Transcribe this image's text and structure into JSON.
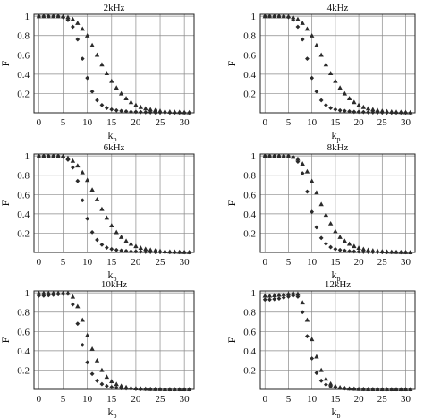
{
  "colors": {
    "diamond": "#2b2b2b",
    "triangle": "#2b2b2b",
    "grid": "#8a8a8a",
    "frame": "#222222"
  },
  "chart_data": [
    {
      "type": "scatter",
      "title": "2kHz",
      "xlabel": "k",
      "xlabel_sub": "p",
      "ylabel": "F",
      "xlim": [
        -1,
        32
      ],
      "ylim": [
        0,
        1.02
      ],
      "xticks": [
        0,
        5,
        10,
        15,
        20,
        25,
        30
      ],
      "yticks": [
        {
          "v": 0.2,
          "t": "0.2"
        },
        {
          "v": 0.4,
          "t": "0.4"
        },
        {
          "v": 0.6,
          "t": "0.6"
        },
        {
          "v": 0.8,
          "t": "0.8"
        },
        {
          "v": 1,
          "t": "1"
        }
      ],
      "grid": true,
      "series": [
        {
          "marker": "diamond",
          "x": [
            0,
            1,
            2,
            3,
            4,
            5,
            6,
            7,
            8,
            9,
            10,
            11,
            12,
            13,
            14,
            15,
            16,
            17,
            18,
            19,
            20,
            21,
            22,
            23,
            24,
            25,
            26,
            27,
            28,
            29,
            30,
            31
          ],
          "y": [
            1,
            1,
            1,
            1,
            1,
            0.99,
            0.96,
            0.89,
            0.76,
            0.56,
            0.36,
            0.22,
            0.13,
            0.08,
            0.05,
            0.035,
            0.025,
            0.02,
            0.015,
            0.01,
            0.01,
            0.008,
            0.006,
            0.005,
            0.004,
            0.003,
            0.003,
            0.002,
            0.002,
            0.002,
            0.001,
            0.001
          ]
        },
        {
          "marker": "triangle",
          "x": [
            0,
            1,
            2,
            3,
            4,
            5,
            6,
            7,
            8,
            9,
            10,
            11,
            12,
            13,
            14,
            15,
            16,
            17,
            18,
            19,
            20,
            21,
            22,
            23,
            24,
            25,
            26,
            27,
            28,
            29,
            30,
            31
          ],
          "y": [
            1,
            1,
            1,
            1,
            1,
            1,
            0.99,
            0.97,
            0.93,
            0.87,
            0.8,
            0.7,
            0.6,
            0.5,
            0.41,
            0.33,
            0.26,
            0.2,
            0.15,
            0.11,
            0.08,
            0.06,
            0.045,
            0.035,
            0.027,
            0.02,
            0.015,
            0.012,
            0.01,
            0.008,
            0.006,
            0.005
          ]
        }
      ]
    },
    {
      "type": "scatter",
      "title": "4kHz",
      "xlabel": "k",
      "xlabel_sub": "p",
      "ylabel": "F",
      "xlim": [
        -1,
        32
      ],
      "ylim": [
        0,
        1.02
      ],
      "xticks": [
        0,
        5,
        10,
        15,
        20,
        25,
        30
      ],
      "yticks": [
        {
          "v": 0.2,
          "t": "0.2"
        },
        {
          "v": 0.4,
          "t": "0.4"
        },
        {
          "v": 0.6,
          "t": "0.6"
        },
        {
          "v": 0.8,
          "t": "0.8"
        },
        {
          "v": 1,
          "t": "1"
        }
      ],
      "grid": true,
      "series": [
        {
          "marker": "diamond",
          "x": [
            0,
            1,
            2,
            3,
            4,
            5,
            6,
            7,
            8,
            9,
            10,
            11,
            12,
            13,
            14,
            15,
            16,
            17,
            18,
            19,
            20,
            21,
            22,
            23,
            24,
            25,
            26,
            27,
            28,
            29,
            30,
            31
          ],
          "y": [
            1,
            1,
            1,
            1,
            1,
            0.99,
            0.96,
            0.89,
            0.76,
            0.56,
            0.36,
            0.22,
            0.13,
            0.08,
            0.05,
            0.035,
            0.025,
            0.02,
            0.015,
            0.01,
            0.01,
            0.008,
            0.006,
            0.005,
            0.004,
            0.003,
            0.003,
            0.002,
            0.002,
            0.002,
            0.001,
            0.001
          ]
        },
        {
          "marker": "triangle",
          "x": [
            0,
            1,
            2,
            3,
            4,
            5,
            6,
            7,
            8,
            9,
            10,
            11,
            12,
            13,
            14,
            15,
            16,
            17,
            18,
            19,
            20,
            21,
            22,
            23,
            24,
            25,
            26,
            27,
            28,
            29,
            30,
            31
          ],
          "y": [
            1,
            1,
            1,
            1,
            1,
            1,
            0.99,
            0.97,
            0.93,
            0.87,
            0.8,
            0.7,
            0.6,
            0.5,
            0.41,
            0.33,
            0.26,
            0.2,
            0.15,
            0.11,
            0.08,
            0.06,
            0.045,
            0.035,
            0.027,
            0.02,
            0.015,
            0.012,
            0.01,
            0.008,
            0.006,
            0.005
          ]
        }
      ]
    },
    {
      "type": "scatter",
      "title": "6kHz",
      "xlabel": "k",
      "xlabel_sub": "p",
      "ylabel": "F",
      "xlim": [
        -1,
        32
      ],
      "ylim": [
        0,
        1.02
      ],
      "xticks": [
        0,
        5,
        10,
        15,
        20,
        25,
        30
      ],
      "yticks": [
        {
          "v": 0.2,
          "t": "0.2"
        },
        {
          "v": 0.4,
          "t": "0.4"
        },
        {
          "v": 0.6,
          "t": "0.6"
        },
        {
          "v": 0.8,
          "t": "0.8"
        },
        {
          "v": 1,
          "t": "1"
        }
      ],
      "grid": true,
      "series": [
        {
          "marker": "diamond",
          "x": [
            0,
            1,
            2,
            3,
            4,
            5,
            6,
            7,
            8,
            9,
            10,
            11,
            12,
            13,
            14,
            15,
            16,
            17,
            18,
            19,
            20,
            21,
            22,
            23,
            24,
            25,
            26,
            27,
            28,
            29,
            30,
            31
          ],
          "y": [
            1,
            1,
            1,
            1,
            1,
            0.99,
            0.96,
            0.88,
            0.74,
            0.54,
            0.35,
            0.21,
            0.13,
            0.08,
            0.05,
            0.035,
            0.025,
            0.02,
            0.015,
            0.01,
            0.01,
            0.008,
            0.006,
            0.005,
            0.004,
            0.003,
            0.003,
            0.002,
            0.002,
            0.002,
            0.001,
            0.001
          ]
        },
        {
          "marker": "triangle",
          "x": [
            0,
            1,
            2,
            3,
            4,
            5,
            6,
            7,
            8,
            9,
            10,
            11,
            12,
            13,
            14,
            15,
            16,
            17,
            18,
            19,
            20,
            21,
            22,
            23,
            24,
            25,
            26,
            27,
            28,
            29,
            30,
            31
          ],
          "y": [
            1,
            1,
            1,
            1,
            1,
            1,
            0.98,
            0.95,
            0.9,
            0.83,
            0.75,
            0.65,
            0.55,
            0.45,
            0.36,
            0.28,
            0.21,
            0.16,
            0.12,
            0.09,
            0.065,
            0.048,
            0.036,
            0.027,
            0.02,
            0.015,
            0.011,
            0.009,
            0.007,
            0.005,
            0.004,
            0.003
          ]
        }
      ]
    },
    {
      "type": "scatter",
      "title": "8kHz",
      "xlabel": "k",
      "xlabel_sub": "p",
      "ylabel": "F",
      "xlim": [
        -1,
        32
      ],
      "ylim": [
        0,
        1.02
      ],
      "xticks": [
        0,
        5,
        10,
        15,
        20,
        25,
        30
      ],
      "yticks": [
        {
          "v": 0.2,
          "t": "0.2"
        },
        {
          "v": 0.4,
          "t": "0.4"
        },
        {
          "v": 0.6,
          "t": "0.6"
        },
        {
          "v": 0.8,
          "t": "0.8"
        },
        {
          "v": 1,
          "t": "1"
        }
      ],
      "grid": true,
      "series": [
        {
          "marker": "diamond",
          "x": [
            0,
            1,
            2,
            3,
            4,
            5,
            6,
            7,
            8,
            9,
            10,
            11,
            12,
            13,
            14,
            15,
            16,
            17,
            18,
            19,
            20,
            21,
            22,
            23,
            24,
            25,
            26,
            27,
            28,
            29,
            30,
            31
          ],
          "y": [
            1,
            1,
            1,
            1,
            1,
            1,
            0.99,
            0.94,
            0.82,
            0.63,
            0.42,
            0.26,
            0.15,
            0.09,
            0.055,
            0.035,
            0.025,
            0.018,
            0.013,
            0.01,
            0.008,
            0.006,
            0.005,
            0.004,
            0.003,
            0.003,
            0.002,
            0.002,
            0.002,
            0.001,
            0.001,
            0.001
          ]
        },
        {
          "marker": "triangle",
          "x": [
            0,
            1,
            2,
            3,
            4,
            5,
            6,
            7,
            8,
            9,
            10,
            11,
            12,
            13,
            14,
            15,
            16,
            17,
            18,
            19,
            20,
            21,
            22,
            23,
            24,
            25,
            26,
            27,
            28,
            29,
            30,
            31
          ],
          "y": [
            1,
            1,
            1,
            1,
            1,
            1,
            0.99,
            0.97,
            0.92,
            0.84,
            0.74,
            0.62,
            0.5,
            0.39,
            0.3,
            0.22,
            0.16,
            0.12,
            0.09,
            0.065,
            0.048,
            0.035,
            0.026,
            0.02,
            0.015,
            0.011,
            0.008,
            0.006,
            0.005,
            0.004,
            0.003,
            0.002
          ]
        }
      ]
    },
    {
      "type": "scatter",
      "title": "10kHz",
      "xlabel": "k",
      "xlabel_sub": "p",
      "ylabel": "F",
      "xlim": [
        -1,
        32
      ],
      "ylim": [
        0,
        1.02
      ],
      "xticks": [
        0,
        5,
        10,
        15,
        20,
        25,
        30
      ],
      "yticks": [
        {
          "v": 0.2,
          "t": "0.2"
        },
        {
          "v": 0.4,
          "t": "0.4"
        },
        {
          "v": 0.6,
          "t": "0.6"
        },
        {
          "v": 0.8,
          "t": "0.8"
        },
        {
          "v": 1,
          "t": "1"
        }
      ],
      "grid": true,
      "series": [
        {
          "marker": "diamond",
          "x": [
            0,
            1,
            2,
            3,
            4,
            5,
            6,
            7,
            8,
            9,
            10,
            11,
            12,
            13,
            14,
            15,
            16,
            17,
            18,
            19,
            20,
            21,
            22,
            23,
            24,
            25,
            26,
            27,
            28,
            29,
            30,
            31
          ],
          "y": [
            0.97,
            0.97,
            0.975,
            0.98,
            0.985,
            0.99,
            0.99,
            0.88,
            0.68,
            0.46,
            0.28,
            0.16,
            0.09,
            0.055,
            0.035,
            0.024,
            0.017,
            0.012,
            0.009,
            0.007,
            0.005,
            0.004,
            0.003,
            0.003,
            0.002,
            0.002,
            0.002,
            0.001,
            0.001,
            0.001,
            0.001,
            0.001
          ]
        },
        {
          "marker": "triangle",
          "x": [
            0,
            1,
            2,
            3,
            4,
            5,
            6,
            7,
            8,
            9,
            10,
            11,
            12,
            13,
            14,
            15,
            16,
            17,
            18,
            19,
            20,
            21,
            22,
            23,
            24,
            25,
            26,
            27,
            28,
            29,
            30,
            31
          ],
          "y": [
            1,
            1,
            1,
            1,
            1,
            1,
            1,
            0.96,
            0.86,
            0.72,
            0.56,
            0.42,
            0.3,
            0.2,
            0.13,
            0.085,
            0.055,
            0.036,
            0.024,
            0.016,
            0.011,
            0.008,
            0.006,
            0.004,
            0.003,
            0.003,
            0.002,
            0.002,
            0.001,
            0.001,
            0.001,
            0.001
          ]
        }
      ]
    },
    {
      "type": "scatter",
      "title": "12kHz",
      "xlabel": "k",
      "xlabel_sub": "p",
      "ylabel": "F",
      "xlim": [
        -1,
        32
      ],
      "ylim": [
        0,
        1.02
      ],
      "xticks": [
        0,
        5,
        10,
        15,
        20,
        25,
        30
      ],
      "yticks": [
        {
          "v": 0.2,
          "t": "0.2"
        },
        {
          "v": 0.4,
          "t": "0.4"
        },
        {
          "v": 0.6,
          "t": "0.6"
        },
        {
          "v": 0.8,
          "t": "0.8"
        },
        {
          "v": 1,
          "t": "1"
        }
      ],
      "grid": true,
      "series": [
        {
          "marker": "diamond",
          "x": [
            0,
            1,
            2,
            3,
            4,
            5,
            6,
            7,
            8,
            9,
            10,
            11,
            12,
            13,
            14,
            15,
            16,
            17,
            18,
            19,
            20,
            21,
            22,
            23,
            24,
            25,
            26,
            27,
            28,
            29,
            30,
            31
          ],
          "y": [
            0.93,
            0.93,
            0.935,
            0.94,
            0.95,
            0.96,
            0.97,
            0.96,
            0.8,
            0.55,
            0.32,
            0.17,
            0.09,
            0.05,
            0.03,
            0.02,
            0.014,
            0.01,
            0.007,
            0.005,
            0.004,
            0.003,
            0.002,
            0.002,
            0.002,
            0.001,
            0.001,
            0.001,
            0.001,
            0.001,
            0.001,
            0.001
          ]
        },
        {
          "marker": "triangle",
          "x": [
            0,
            1,
            2,
            3,
            4,
            5,
            6,
            7,
            8,
            9,
            10,
            11,
            12,
            13,
            14,
            15,
            16,
            17,
            18,
            19,
            20,
            21,
            22,
            23,
            24,
            25,
            26,
            27,
            28,
            29,
            30,
            31
          ],
          "y": [
            0.97,
            0.97,
            0.975,
            0.98,
            0.985,
            0.99,
            1,
            0.99,
            0.9,
            0.72,
            0.52,
            0.34,
            0.2,
            0.11,
            0.06,
            0.035,
            0.021,
            0.013,
            0.009,
            0.006,
            0.004,
            0.003,
            0.002,
            0.002,
            0.001,
            0.001,
            0.001,
            0.001,
            0.001,
            0.001,
            0.001,
            0.001
          ]
        }
      ]
    }
  ]
}
